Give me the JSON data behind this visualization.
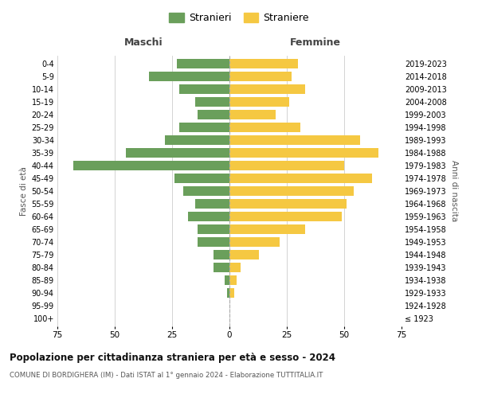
{
  "age_groups": [
    "100+",
    "95-99",
    "90-94",
    "85-89",
    "80-84",
    "75-79",
    "70-74",
    "65-69",
    "60-64",
    "55-59",
    "50-54",
    "45-49",
    "40-44",
    "35-39",
    "30-34",
    "25-29",
    "20-24",
    "15-19",
    "10-14",
    "5-9",
    "0-4"
  ],
  "birth_years": [
    "≤ 1923",
    "1924-1928",
    "1929-1933",
    "1934-1938",
    "1939-1943",
    "1944-1948",
    "1949-1953",
    "1954-1958",
    "1959-1963",
    "1964-1968",
    "1969-1973",
    "1974-1978",
    "1979-1983",
    "1984-1988",
    "1989-1993",
    "1994-1998",
    "1999-2003",
    "2004-2008",
    "2009-2013",
    "2014-2018",
    "2019-2023"
  ],
  "males": [
    0,
    0,
    1,
    2,
    7,
    7,
    14,
    14,
    18,
    15,
    20,
    24,
    68,
    45,
    28,
    22,
    14,
    15,
    22,
    35,
    23
  ],
  "females": [
    0,
    0,
    2,
    3,
    5,
    13,
    22,
    33,
    49,
    51,
    54,
    62,
    50,
    65,
    57,
    31,
    20,
    26,
    33,
    27,
    30
  ],
  "male_color": "#6a9f5b",
  "female_color": "#f5c842",
  "background_color": "#ffffff",
  "grid_color": "#cccccc",
  "title": "Popolazione per cittadinanza straniera per età e sesso - 2024",
  "subtitle": "COMUNE DI BORDIGHERA (IM) - Dati ISTAT al 1° gennaio 2024 - Elaborazione TUTTITALIA.IT",
  "xlabel_left": "Maschi",
  "xlabel_right": "Femmine",
  "ylabel_left": "Fasce di età",
  "ylabel_right": "Anni di nascita",
  "legend_male": "Stranieri",
  "legend_female": "Straniere",
  "xlim": 75,
  "bar_height": 0.75
}
